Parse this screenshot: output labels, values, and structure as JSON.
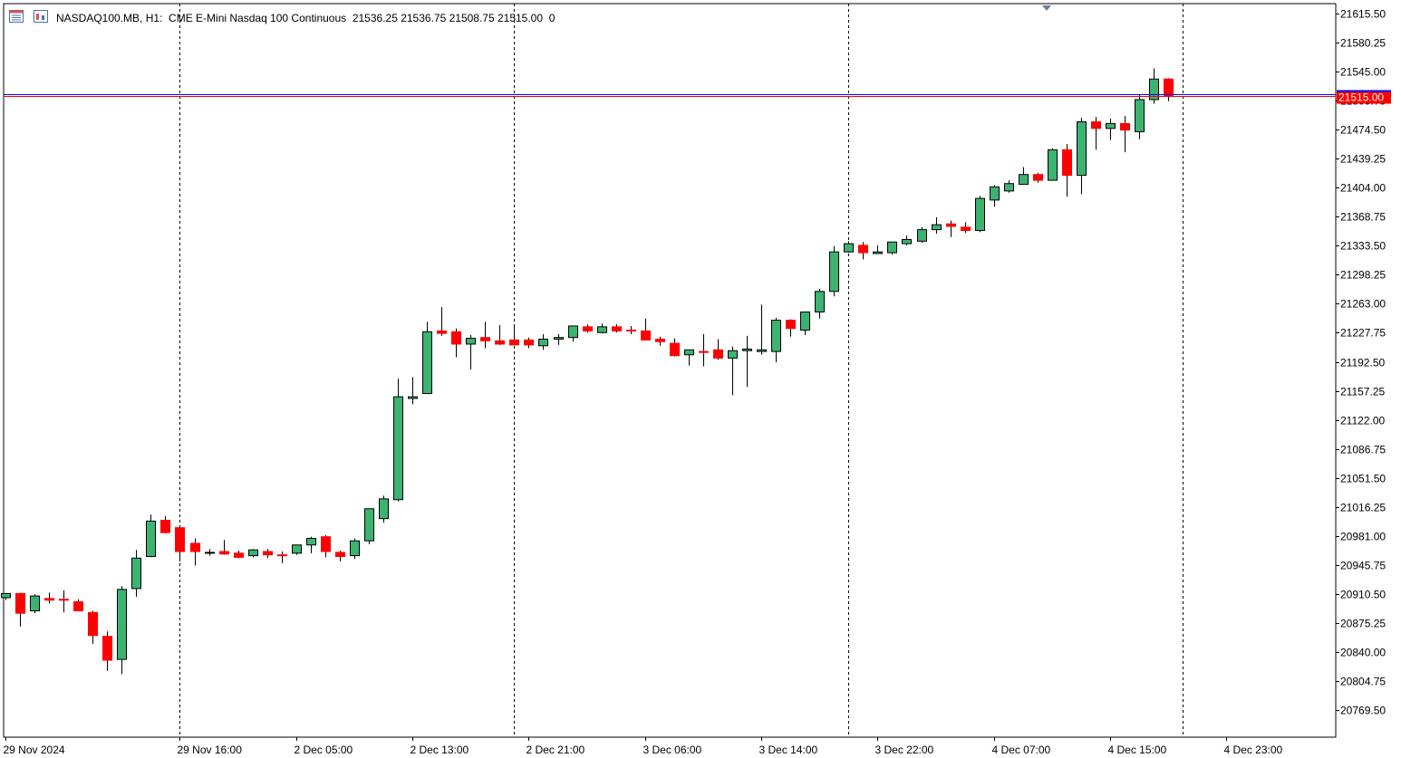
{
  "header": {
    "symbol": "NASDAQ100.MB, H1:",
    "description": "CME E-Mini Nasdaq 100 Continuous",
    "ohlc": "21536.25 21536.75 21508.75 21515.00",
    "volume": "0"
  },
  "icons": [
    "chart-window-icon",
    "indicator-icon"
  ],
  "colors": {
    "bull": "#3cb371",
    "bear": "#ff0000",
    "price_line": "#0000ff",
    "price_label_bg": "#ff0000",
    "grid_vertical": "#000000"
  },
  "chart_data": {
    "type": "candlestick",
    "y_axis_ticks": [
      "21615.50",
      "21580.25",
      "21545.00",
      "21509.75",
      "21474.50",
      "21439.25",
      "21404.00",
      "21368.75",
      "21333.50",
      "21298.25",
      "21263.00",
      "21227.75",
      "21192.50",
      "21157.25",
      "21122.00",
      "21086.75",
      "21051.50",
      "21016.25",
      "20981.00",
      "20945.75",
      "20910.50",
      "20875.25",
      "20840.00",
      "20804.75",
      "20769.50"
    ],
    "ylim": [
      20752,
      21626
    ],
    "x_axis_ticks": [
      {
        "label": "29 Nov 2024",
        "bar": 0
      },
      {
        "label": "29 Nov 16:00",
        "bar": 12
      },
      {
        "label": "2 Dec 05:00",
        "bar": 20
      },
      {
        "label": "2 Dec 13:00",
        "bar": 28
      },
      {
        "label": "2 Dec 21:00",
        "bar": 36
      },
      {
        "label": "3 Dec 06:00",
        "bar": 44
      },
      {
        "label": "3 Dec 14:00",
        "bar": 52
      },
      {
        "label": "3 Dec 22:00",
        "bar": 60
      },
      {
        "label": "4 Dec 07:00",
        "bar": 68
      },
      {
        "label": "4 Dec 15:00",
        "bar": 76
      },
      {
        "label": "4 Dec 23:00",
        "bar": 84
      }
    ],
    "separator_bars": [
      12,
      35,
      58,
      81
    ],
    "current_price": 21515.0,
    "current_price_label": "21515.00",
    "candles": [
      [
        20906,
        20911,
        20903,
        20911
      ],
      [
        20911,
        20912,
        20871,
        20887
      ],
      [
        20890,
        20910,
        20887,
        20908
      ],
      [
        20905,
        20912,
        20899,
        20903
      ],
      [
        20904,
        20915,
        20888,
        20903
      ],
      [
        20901,
        20904,
        20890,
        20890
      ],
      [
        20888,
        20890,
        20850,
        20860
      ],
      [
        20859,
        20865,
        20817,
        20830
      ],
      [
        20831,
        20920,
        20813,
        20916
      ],
      [
        20917,
        20964,
        20907,
        20954
      ],
      [
        20956,
        21007,
        20955,
        20999
      ],
      [
        21000,
        21005,
        20984,
        20985
      ],
      [
        20991,
        20994,
        20950,
        20962
      ],
      [
        20972,
        20978,
        20945,
        20962
      ],
      [
        20961,
        20965,
        20957,
        20961
      ],
      [
        20962,
        20976,
        20958,
        20959
      ],
      [
        20960,
        20963,
        20954,
        20955
      ],
      [
        20957,
        20965,
        20955,
        20964
      ],
      [
        20962,
        20965,
        20954,
        20958
      ],
      [
        20958,
        20962,
        20948,
        20957
      ],
      [
        20960,
        20970,
        20958,
        20970
      ],
      [
        20970,
        20980,
        20960,
        20978
      ],
      [
        20980,
        20982,
        20955,
        20962
      ],
      [
        20961,
        20963,
        20950,
        20956
      ],
      [
        20957,
        20978,
        20953,
        20975
      ],
      [
        20975,
        21010,
        20971,
        21014
      ],
      [
        21002,
        21030,
        20997,
        21026
      ],
      [
        21025,
        21172,
        21023,
        21150
      ],
      [
        21148,
        21174,
        21141,
        21150
      ],
      [
        21154,
        21241,
        21154,
        21229
      ],
      [
        21230,
        21259,
        21224,
        21227
      ],
      [
        21229,
        21233,
        21198,
        21214
      ],
      [
        21214,
        21225,
        21183,
        21221
      ],
      [
        21222,
        21241,
        21209,
        21218
      ],
      [
        21218,
        21237,
        21213,
        21214
      ],
      [
        21219,
        21238,
        21214,
        21213
      ],
      [
        21219,
        21222,
        21209,
        21213
      ],
      [
        21212,
        21226,
        21207,
        21220
      ],
      [
        21220,
        21226,
        21213,
        21222
      ],
      [
        21222,
        21236,
        21217,
        21236
      ],
      [
        21235,
        21238,
        21228,
        21230
      ],
      [
        21228,
        21239,
        21227,
        21235
      ],
      [
        21235,
        21238,
        21228,
        21230
      ],
      [
        21231,
        21236,
        21226,
        21230
      ],
      [
        21230,
        21245,
        21219,
        21219
      ],
      [
        21220,
        21223,
        21212,
        21217
      ],
      [
        21215,
        21221,
        21199,
        21200
      ],
      [
        21201,
        21207,
        21188,
        21207
      ],
      [
        21205,
        21226,
        21187,
        21204
      ],
      [
        21207,
        21220,
        21195,
        21197
      ],
      [
        21197,
        21211,
        21152,
        21206
      ],
      [
        21206,
        21224,
        21162,
        21208
      ],
      [
        21205,
        21262,
        21201,
        21207
      ],
      [
        21205,
        21246,
        21192,
        21243
      ],
      [
        21243,
        21244,
        21223,
        21233
      ],
      [
        21231,
        21253,
        21225,
        21253
      ],
      [
        21253,
        21281,
        21245,
        21278
      ],
      [
        21278,
        21333,
        21272,
        21326
      ],
      [
        21326,
        21339,
        21325,
        21336
      ],
      [
        21334,
        21338,
        21317,
        21325
      ],
      [
        21324,
        21334,
        21324,
        21326
      ],
      [
        21325,
        21338,
        21323,
        21338
      ],
      [
        21336,
        21346,
        21334,
        21341
      ],
      [
        21339,
        21356,
        21337,
        21353
      ],
      [
        21353,
        21368,
        21348,
        21359
      ],
      [
        21360,
        21364,
        21344,
        21357
      ],
      [
        21356,
        21362,
        21349,
        21352
      ],
      [
        21352,
        21394,
        21350,
        21391
      ],
      [
        21389,
        21407,
        21381,
        21405
      ],
      [
        21400,
        21413,
        21398,
        21409
      ],
      [
        21408,
        21429,
        21408,
        21420
      ],
      [
        21420,
        21422,
        21410,
        21413
      ],
      [
        21413,
        21452,
        21413,
        21450
      ],
      [
        21450,
        21457,
        21393,
        21419
      ],
      [
        21419,
        21489,
        21396,
        21484
      ],
      [
        21484,
        21490,
        21450,
        21476
      ],
      [
        21476,
        21488,
        21462,
        21482
      ],
      [
        21482,
        21491,
        21447,
        21474
      ],
      [
        21472,
        21517,
        21463,
        21511
      ],
      [
        21511,
        21549,
        21506,
        21536
      ],
      [
        21536,
        21537,
        21509,
        21515
      ]
    ]
  },
  "x_labels": {
    "t0": "29 Nov 2024",
    "t1": "29 Nov 16:00",
    "t2": "2 Dec 05:00",
    "t3": "2 Dec 13:00",
    "t4": "2 Dec 21:00",
    "t5": "3 Dec 06:00",
    "t6": "3 Dec 14:00",
    "t7": "3 Dec 22:00",
    "t8": "4 Dec 07:00",
    "t9": "4 Dec 15:00",
    "t10": "4 Dec 23:00"
  }
}
